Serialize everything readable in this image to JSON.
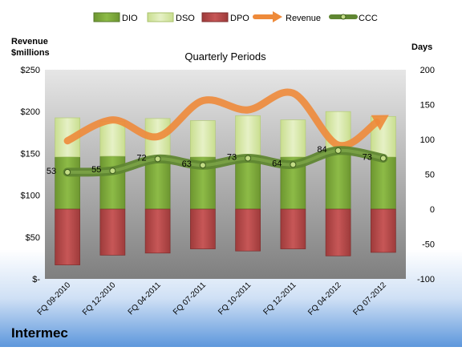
{
  "company": "Intermec",
  "chart_data": {
    "type": "bar",
    "title": "Quarterly Periods",
    "left_axis": {
      "label_line1": "Revenue",
      "label_line2": "$millions",
      "range": [
        0,
        250
      ],
      "ticks": [
        0,
        50,
        100,
        150,
        200,
        250
      ],
      "tick_labels": [
        "$-",
        "$50",
        "$100",
        "$150",
        "$200",
        "$250"
      ]
    },
    "right_axis": {
      "label": "Days",
      "range": [
        -100,
        200
      ],
      "ticks": [
        -100,
        -50,
        0,
        50,
        100,
        150,
        200
      ],
      "tick_labels": [
        "-100",
        "-50",
        "0",
        "50",
        "100",
        "150",
        "200"
      ]
    },
    "categories": [
      "FQ 09-2010",
      "FQ 12-2010",
      "FQ 04-2011",
      "FQ 07-2011",
      "FQ 10-2011",
      "FQ 12-2011",
      "FQ 04-2012",
      "FQ 07-2012"
    ],
    "legend": [
      "DIO",
      "DSO",
      "DPO",
      "Revenue",
      "CCC"
    ],
    "legend_position": "top",
    "series": [
      {
        "name": "DIO",
        "axis": "right",
        "values": [
          75,
          76,
          74,
          75,
          76,
          75,
          83,
          75
        ],
        "color": "#7fa83c"
      },
      {
        "name": "DSO",
        "axis": "right",
        "values": [
          56,
          50,
          56,
          52,
          58,
          53,
          57,
          58
        ],
        "color": "#d7e8a6"
      },
      {
        "name": "DPO",
        "axis": "right",
        "values": [
          -80,
          -66,
          -63,
          -57,
          -60,
          -57,
          -67,
          -62
        ],
        "color": "#b84a4a"
      },
      {
        "name": "Revenue",
        "axis": "left",
        "values": [
          165,
          190,
          170,
          213,
          202,
          222,
          160,
          192
        ],
        "color": "#ee8a3a"
      },
      {
        "name": "CCC",
        "axis": "right",
        "values": [
          53,
          55,
          72,
          63,
          73,
          64,
          84,
          73
        ],
        "color": "#5f8632"
      }
    ],
    "data_labels": [
      "53",
      "55",
      "72",
      "63",
      "73",
      "64",
      "84",
      "73"
    ],
    "grid": false
  }
}
